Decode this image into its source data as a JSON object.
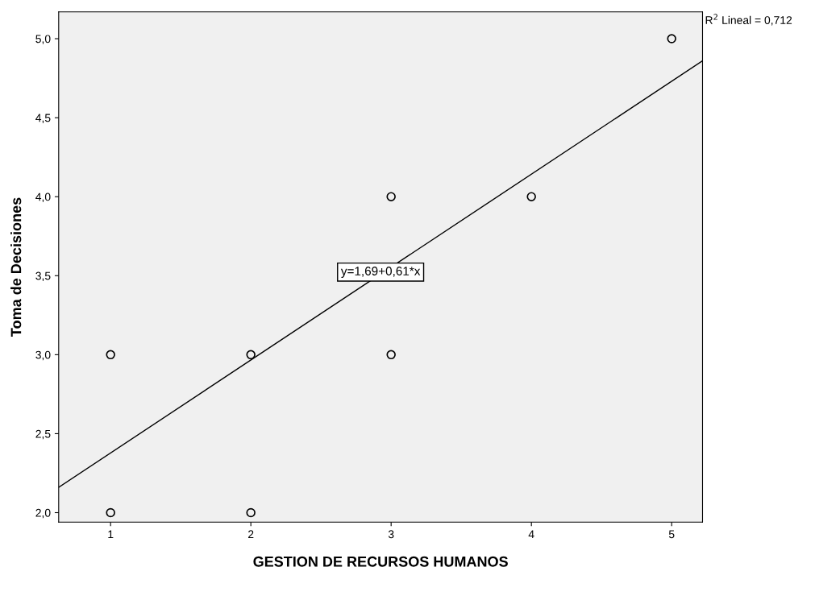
{
  "chart_data": {
    "type": "scatter",
    "xlabel": "GESTION DE RECURSOS HUMANOS",
    "ylabel": "Toma de Decisiones",
    "xlim": [
      0.63,
      5.22
    ],
    "ylim": [
      1.94,
      5.17
    ],
    "xticks": [
      1,
      2,
      3,
      4,
      5
    ],
    "yticks": [
      {
        "value": 2.0,
        "label": "2,0"
      },
      {
        "value": 2.5,
        "label": "2,5"
      },
      {
        "value": 3.0,
        "label": "3,0"
      },
      {
        "value": 3.5,
        "label": "3,5"
      },
      {
        "value": 4.0,
        "label": "4,0"
      },
      {
        "value": 4.5,
        "label": "4,5"
      },
      {
        "value": 5.0,
        "label": "5,0"
      }
    ],
    "grid": false,
    "legend": false,
    "series": [
      {
        "color": "#000000",
        "marker": "circle",
        "x": [
          1,
          1,
          2,
          2,
          3,
          3,
          4,
          5
        ],
        "values": [
          3,
          2,
          3,
          2,
          4,
          3,
          4,
          5
        ]
      },
      {
        "type": "line",
        "color": "#000000",
        "marker": "none",
        "line_style": "solid",
        "x": [
          0.63,
          5.22
        ],
        "values": [
          2.16,
          4.86
        ]
      }
    ],
    "annotations": [
      "y=1,69+0,61*x",
      "R$^{2}$ Lineal = 0,712"
    ]
  }
}
